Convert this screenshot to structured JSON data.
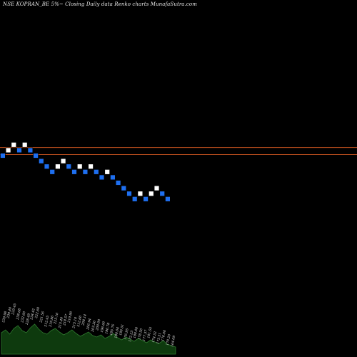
{
  "header_text": "NSE KOPRAN_BE 5%~   Closing Daily data  Renko  charts MunafaSutra.com",
  "colors": {
    "background": "#000000",
    "up_brick": "#ffffff",
    "down_brick": "#1e6ff0",
    "brick_border": "#000000",
    "reference_lines": "#c0501e",
    "volume_fill": "#0e3a0e",
    "volume_edge": "#2f7a2f",
    "label_text": "#e8e8e8"
  },
  "chart_data": {
    "type": "renko",
    "title": "NSE KOPRAN_BE 5%~   Closing Daily data  Renko  charts MunafaSutra.com",
    "bricks": [
      {
        "dir": "down",
        "level": 0
      },
      {
        "dir": "up",
        "level": 1
      },
      {
        "dir": "up",
        "level": 2
      },
      {
        "dir": "down",
        "level": 1
      },
      {
        "dir": "up",
        "level": 2
      },
      {
        "dir": "down",
        "level": 1
      },
      {
        "dir": "down",
        "level": 0
      },
      {
        "dir": "down",
        "level": -1
      },
      {
        "dir": "down",
        "level": -2
      },
      {
        "dir": "down",
        "level": -3
      },
      {
        "dir": "up",
        "level": -2
      },
      {
        "dir": "up",
        "level": -1
      },
      {
        "dir": "down",
        "level": -2
      },
      {
        "dir": "down",
        "level": -3
      },
      {
        "dir": "up",
        "level": -2
      },
      {
        "dir": "down",
        "level": -3
      },
      {
        "dir": "up",
        "level": -2
      },
      {
        "dir": "down",
        "level": -3
      },
      {
        "dir": "down",
        "level": -4
      },
      {
        "dir": "up",
        "level": -3
      },
      {
        "dir": "down",
        "level": -4
      },
      {
        "dir": "down",
        "level": -5
      },
      {
        "dir": "down",
        "level": -6
      },
      {
        "dir": "down",
        "level": -7
      },
      {
        "dir": "down",
        "level": -8
      },
      {
        "dir": "up",
        "level": -7
      },
      {
        "dir": "down",
        "level": -8
      },
      {
        "dir": "up",
        "level": -7
      },
      {
        "dir": "up",
        "level": -6
      },
      {
        "dir": "down",
        "level": -7
      },
      {
        "dir": "down",
        "level": -8
      }
    ],
    "reference_lines": [
      {
        "level": 1.5
      },
      {
        "level": 0.2
      }
    ],
    "volume_labels": [
      "239.98",
      "239.40",
      "229.45",
      "238.68",
      "232.60",
      "228.49",
      "234.42",
      "222.60",
      "221.56",
      "212.45",
      "219.96",
      "223.16",
      "215.40",
      "218.57",
      "219.80",
      "215.10",
      "212.60",
      "208.14",
      "206.94",
      "203.30",
      "200.00",
      "196.60",
      "190.78",
      "185.76",
      "180.04",
      "186.51",
      "176.95",
      "172.23",
      "180.00",
      "178.50",
      "177.37",
      "181.55",
      "174.52",
      "173.31",
      "176.00",
      "170.20",
      "164.09"
    ]
  }
}
